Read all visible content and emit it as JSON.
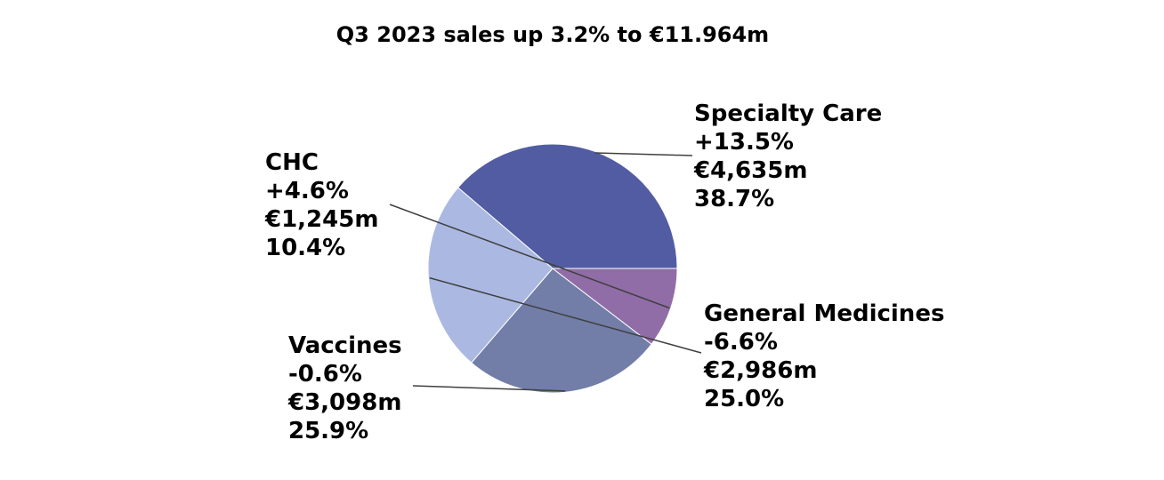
{
  "chart_data": {
    "type": "pie",
    "title": "Q3 2023 sales up 3.2% to €11.964m",
    "slices": [
      {
        "name": "Specialty Care",
        "change": "+13.5%",
        "sales": "€4,635m",
        "share_label": "38.7%",
        "value": 4635,
        "share": 38.7,
        "color": "#525CA3"
      },
      {
        "name": "General Medicines",
        "change": "-6.6%",
        "sales": "€2,986m",
        "share_label": "25.0%",
        "value": 2986,
        "share": 25.0,
        "color": "#ABB9E2"
      },
      {
        "name": "Vaccines",
        "change": "-0.6%",
        "sales": "€3,098m",
        "share_label": "25.9%",
        "value": 3098,
        "share": 25.9,
        "color": "#727EA8"
      },
      {
        "name": "CHC",
        "change": "+4.6%",
        "sales": "€1,245m",
        "share_label": "10.4%",
        "value": 1245,
        "share": 10.4,
        "color": "#916DA8"
      }
    ],
    "legend": "none"
  }
}
